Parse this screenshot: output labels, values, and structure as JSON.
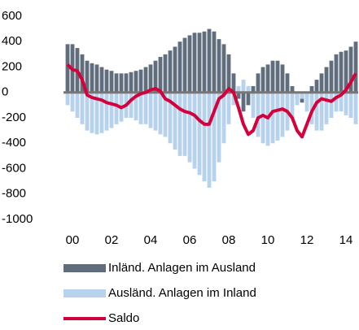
{
  "chart_data": {
    "type": "bar-line",
    "categories": [
      "00",
      null,
      null,
      null,
      null,
      null,
      null,
      null,
      "02",
      null,
      null,
      null,
      null,
      null,
      null,
      null,
      "04",
      null,
      null,
      null,
      null,
      null,
      null,
      null,
      "06",
      null,
      null,
      null,
      null,
      null,
      null,
      null,
      "08",
      null,
      null,
      null,
      null,
      null,
      null,
      null,
      "10",
      null,
      null,
      null,
      null,
      null,
      null,
      null,
      "12",
      null,
      null,
      null,
      null,
      null,
      null,
      null,
      "14",
      null,
      null,
      null
    ],
    "series": [
      {
        "name": "Inländ. Anlagen im Ausland",
        "type": "bar",
        "color": "#5f6d7c",
        "values": [
          380,
          380,
          350,
          300,
          250,
          230,
          220,
          200,
          180,
          170,
          150,
          150,
          150,
          160,
          170,
          180,
          200,
          220,
          250,
          280,
          300,
          330,
          360,
          400,
          430,
          450,
          470,
          470,
          480,
          500,
          480,
          420,
          380,
          300,
          150,
          -50,
          -150,
          -100,
          50,
          150,
          200,
          220,
          250,
          250,
          220,
          150,
          50,
          -50,
          -80,
          -50,
          50,
          100,
          150,
          200,
          250,
          300,
          320,
          330,
          360,
          400
        ]
      },
      {
        "name": "Ausländ. Anlagen im Inland",
        "type": "bar",
        "color": "#b7d2ec",
        "values": [
          -100,
          -150,
          -200,
          -250,
          -300,
          -320,
          -330,
          -320,
          -300,
          -280,
          -250,
          -230,
          -200,
          -200,
          -220,
          -250,
          -250,
          -280,
          -300,
          -330,
          -350,
          -400,
          -450,
          -500,
          -500,
          -550,
          -600,
          -650,
          -700,
          -750,
          -700,
          -550,
          -400,
          -250,
          -100,
          50,
          100,
          50,
          -200,
          -350,
          -400,
          -420,
          -400,
          -380,
          -350,
          -300,
          -200,
          -100,
          -50,
          -150,
          -250,
          -300,
          -300,
          -250,
          -200,
          -150,
          -150,
          -180,
          -200,
          -250
        ]
      },
      {
        "name": "Saldo",
        "type": "line",
        "color": "#d5003b",
        "values": [
          220,
          180,
          170,
          100,
          -20,
          -40,
          -50,
          -60,
          -80,
          -90,
          -100,
          -120,
          -100,
          -60,
          -30,
          -10,
          0,
          20,
          30,
          10,
          -50,
          -70,
          -100,
          -130,
          -150,
          -160,
          -180,
          -220,
          -250,
          -250,
          -150,
          -50,
          -20,
          30,
          0,
          -120,
          -250,
          -330,
          -300,
          -200,
          -180,
          -200,
          -150,
          -140,
          -130,
          -150,
          -200,
          -300,
          -350,
          -250,
          -150,
          -80,
          -50,
          -60,
          -70,
          -40,
          -20,
          20,
          80,
          150
        ]
      }
    ],
    "ylim": [
      -1000,
      600
    ],
    "yticks": [
      600,
      400,
      200,
      0,
      -200,
      -400,
      -600,
      -800,
      -1000
    ],
    "grid": false
  }
}
